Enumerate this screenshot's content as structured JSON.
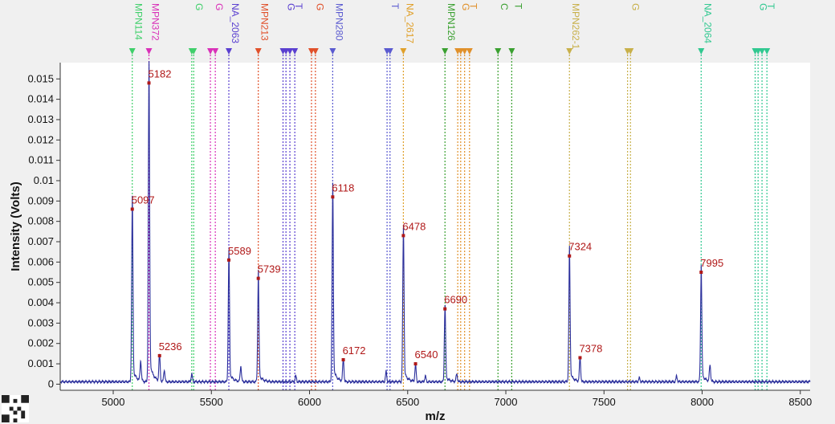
{
  "chart_data": {
    "type": "line",
    "title": "",
    "xlabel": "m/z",
    "ylabel": "Intensity (Volts)",
    "xlim": [
      4730,
      8550
    ],
    "ylim": [
      -0.0003,
      0.0158
    ],
    "x_ticks": [
      5000,
      5500,
      6000,
      6500,
      7000,
      7500,
      8000,
      8500
    ],
    "y_ticks": [
      0,
      0.001,
      0.002,
      0.003,
      0.004,
      0.005,
      0.006,
      0.007,
      0.008,
      0.009,
      0.01,
      0.011,
      0.012,
      0.013,
      0.014,
      0.015
    ],
    "y_tick_labels": [
      "0",
      "0.001",
      "0.002",
      "0.003",
      "0.004",
      "0.005",
      "0.006",
      "0.007",
      "0.008",
      "0.009",
      "0.01",
      "0.011",
      "0.012",
      "0.013",
      "0.014",
      "0.015"
    ],
    "grid": false,
    "colors": {
      "trace": "#2b2f9c",
      "peak_label": "#b01818",
      "plot_background": "#ffffff",
      "page_background": "#f0f0f0"
    },
    "baseline": 0.00012,
    "series": [
      {
        "peaks": [
          {
            "x": 5097,
            "y": 0.0086,
            "label": "5097"
          },
          {
            "x": 5182,
            "y": 0.0148,
            "label": "5182"
          },
          {
            "x": 5236,
            "y": 0.0014,
            "label": "5236"
          },
          {
            "x": 5589,
            "y": 0.0061,
            "label": "5589"
          },
          {
            "x": 5739,
            "y": 0.0052,
            "label": "5739"
          },
          {
            "x": 6118,
            "y": 0.0092,
            "label": "6118"
          },
          {
            "x": 6172,
            "y": 0.0012,
            "label": "6172"
          },
          {
            "x": 6478,
            "y": 0.0073,
            "label": "6478"
          },
          {
            "x": 6540,
            "y": 0.001,
            "label": "6540"
          },
          {
            "x": 6690,
            "y": 0.0037,
            "label": "6690"
          },
          {
            "x": 7324,
            "y": 0.0063,
            "label": "7324"
          },
          {
            "x": 7378,
            "y": 0.0013,
            "label": "7378"
          },
          {
            "x": 7995,
            "y": 0.0055,
            "label": "7995"
          }
        ],
        "minor_peaks": [
          {
            "x": 5140,
            "y": 0.0011
          },
          {
            "x": 5260,
            "y": 0.0007
          },
          {
            "x": 5400,
            "y": 0.0005
          },
          {
            "x": 5650,
            "y": 0.0009
          },
          {
            "x": 5930,
            "y": 0.0004
          },
          {
            "x": 6390,
            "y": 0.0006
          },
          {
            "x": 6590,
            "y": 0.0004
          },
          {
            "x": 6750,
            "y": 0.0005
          },
          {
            "x": 7680,
            "y": 0.0003
          },
          {
            "x": 7870,
            "y": 0.0004
          },
          {
            "x": 8040,
            "y": 0.0009
          }
        ]
      }
    ],
    "marker_groups": [
      {
        "label": "MPN114",
        "color": "#3fcf6a",
        "lines": [
          5097
        ]
      },
      {
        "label": "MPN372",
        "color": "#d930b8",
        "lines": [
          5182
        ]
      },
      {
        "label": "G",
        "color": "#3fcf6a",
        "lines": [
          5400,
          5410
        ]
      },
      {
        "label": "G",
        "color": "#d930b8",
        "lines": [
          5495,
          5520
        ]
      },
      {
        "label": "NA_2063",
        "color": "#5a3fd0",
        "lines": [
          5589
        ]
      },
      {
        "label": "MPN213",
        "color": "#e0502a",
        "lines": [
          5739
        ]
      },
      {
        "label": "G",
        "color": "#5a3fd0",
        "lines": [
          5865,
          5880
        ]
      },
      {
        "label": "T",
        "color": "#5a3fd0",
        "lines": [
          5900,
          5925
        ]
      },
      {
        "label": "G",
        "color": "#e0502a",
        "lines": [
          6010,
          6030
        ]
      },
      {
        "label": "MPN280",
        "color": "#5a5ad0",
        "lines": [
          6118
        ]
      },
      {
        "label": "T",
        "color": "#5a5ad0",
        "lines": [
          6395,
          6410
        ]
      },
      {
        "label": "NA_2617",
        "color": "#e0a02a",
        "lines": [
          6478
        ]
      },
      {
        "label": "MPN126",
        "color": "#3aa030",
        "lines": [
          6690
        ]
      },
      {
        "label": "G",
        "color": "#e0902a",
        "lines": [
          6755,
          6770
        ]
      },
      {
        "label": "T",
        "color": "#e0902a",
        "lines": [
          6790,
          6815
        ]
      },
      {
        "label": "C",
        "color": "#3aa030",
        "lines": [
          6960
        ]
      },
      {
        "label": "T",
        "color": "#3aa030",
        "lines": [
          7030
        ]
      },
      {
        "label": "MPN262-1",
        "color": "#c8b04a",
        "lines": [
          7324
        ]
      },
      {
        "label": "G",
        "color": "#c8b04a",
        "lines": [
          7620,
          7635
        ]
      },
      {
        "label": "NA_2064",
        "color": "#30c890",
        "lines": [
          7995
        ]
      },
      {
        "label": "G",
        "color": "#30c890",
        "lines": [
          8270,
          8285
        ]
      },
      {
        "label": "T",
        "color": "#30c890",
        "lines": [
          8305,
          8330
        ]
      }
    ]
  }
}
